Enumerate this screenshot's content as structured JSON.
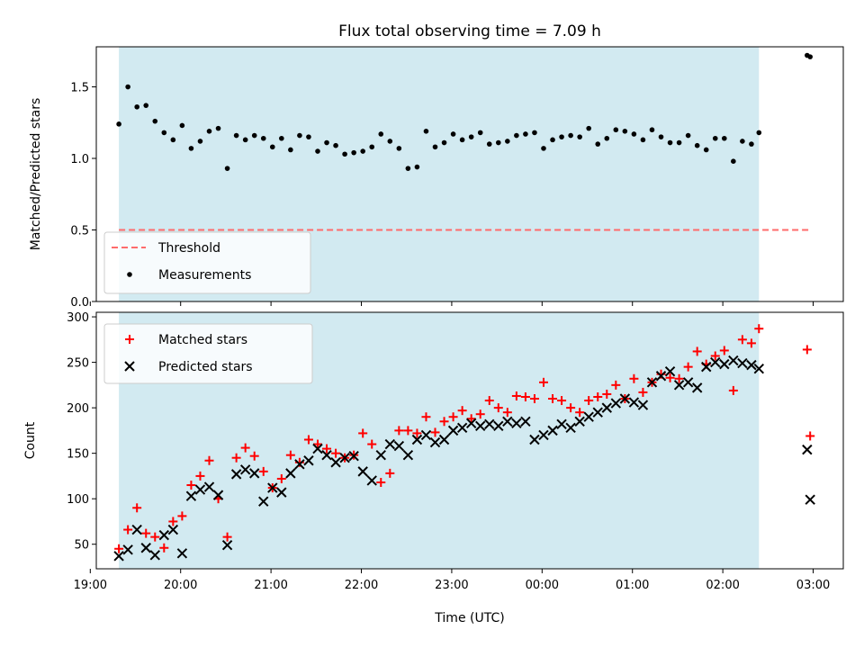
{
  "figure": {
    "title": "Flux total observing time = 7.09 h",
    "xlabel": "Time (UTC)"
  },
  "chart_data": [
    {
      "type": "scatter",
      "name": "ratio-panel",
      "ylabel": "Matched/Predicted stars",
      "xlim": [
        "19:04",
        "03:20"
      ],
      "ylim": [
        0,
        1.78
      ],
      "yticks": [
        "0.0",
        "0.5",
        "1.0",
        "1.5"
      ],
      "yticks_values": [
        0,
        0.5,
        1.0,
        1.5
      ],
      "shaded_range": [
        "19:19",
        "02:24"
      ],
      "shade_color": "#add8e6",
      "threshold": {
        "label": "Threshold",
        "value": 0.5,
        "x_range": [
          "19:19",
          "02:59"
        ],
        "color": "#ff6b6b"
      },
      "series": [
        {
          "name": "Measurements",
          "color": "#000000",
          "marker": "dot",
          "x": [
            "19:19",
            "19:25",
            "19:31",
            "19:37",
            "19:43",
            "19:49",
            "19:55",
            "20:01",
            "20:07",
            "20:13",
            "20:19",
            "20:25",
            "20:31",
            "20:37",
            "20:43",
            "20:49",
            "20:55",
            "21:01",
            "21:07",
            "21:13",
            "21:19",
            "21:25",
            "21:31",
            "21:37",
            "21:43",
            "21:49",
            "21:55",
            "22:01",
            "22:07",
            "22:13",
            "22:19",
            "22:25",
            "22:31",
            "22:37",
            "22:43",
            "22:49",
            "22:55",
            "23:01",
            "23:07",
            "23:13",
            "23:19",
            "23:25",
            "23:31",
            "23:37",
            "23:43",
            "23:49",
            "23:55",
            "00:01",
            "00:07",
            "00:13",
            "00:19",
            "00:25",
            "00:31",
            "00:37",
            "00:43",
            "00:49",
            "00:55",
            "01:01",
            "01:07",
            "01:13",
            "01:19",
            "01:25",
            "01:31",
            "01:37",
            "01:43",
            "01:49",
            "01:55",
            "02:01",
            "02:07",
            "02:13",
            "02:19",
            "02:24",
            "02:56",
            "02:58"
          ],
          "y": [
            1.24,
            1.5,
            1.36,
            1.37,
            1.26,
            1.18,
            1.13,
            1.23,
            1.07,
            1.12,
            1.19,
            1.21,
            0.93,
            1.16,
            1.13,
            1.16,
            1.14,
            1.08,
            1.14,
            1.06,
            1.16,
            1.15,
            1.05,
            1.11,
            1.09,
            1.03,
            1.04,
            1.05,
            1.08,
            1.17,
            1.12,
            1.07,
            0.93,
            0.94,
            1.19,
            1.08,
            1.11,
            1.17,
            1.13,
            1.15,
            1.18,
            1.1,
            1.11,
            1.12,
            1.16,
            1.17,
            1.18,
            1.07,
            1.13,
            1.15,
            1.16,
            1.15,
            1.21,
            1.1,
            1.14,
            1.2,
            1.19,
            1.17,
            1.13,
            1.2,
            1.15,
            1.11,
            1.11,
            1.16,
            1.09,
            1.06,
            1.14,
            1.14,
            0.98,
            1.12,
            1.1,
            1.18,
            1.72,
            1.71
          ]
        }
      ],
      "legend": {
        "placement": "lower-left",
        "entries": [
          "Threshold",
          "Measurements"
        ]
      }
    },
    {
      "type": "scatter",
      "name": "count-panel",
      "ylabel": "Count",
      "xlim": [
        "19:04",
        "03:20"
      ],
      "ylim": [
        23,
        305
      ],
      "yticks": [
        "50",
        "100",
        "150",
        "200",
        "250",
        "300"
      ],
      "yticks_values": [
        50,
        100,
        150,
        200,
        250,
        300
      ],
      "xticks": [
        "19:00",
        "20:00",
        "21:00",
        "22:00",
        "23:00",
        "00:00",
        "01:00",
        "02:00",
        "03:00"
      ],
      "shaded_range": [
        "19:19",
        "02:24"
      ],
      "shade_color": "#add8e6",
      "series": [
        {
          "name": "Matched stars",
          "color": "#ff0000",
          "marker": "plus",
          "x": [
            "19:19",
            "19:25",
            "19:31",
            "19:37",
            "19:43",
            "19:49",
            "19:55",
            "20:01",
            "20:07",
            "20:13",
            "20:19",
            "20:25",
            "20:31",
            "20:37",
            "20:43",
            "20:49",
            "20:55",
            "21:01",
            "21:07",
            "21:13",
            "21:19",
            "21:25",
            "21:31",
            "21:37",
            "21:43",
            "21:49",
            "21:55",
            "22:01",
            "22:07",
            "22:13",
            "22:19",
            "22:25",
            "22:31",
            "22:37",
            "22:43",
            "22:49",
            "22:55",
            "23:01",
            "23:07",
            "23:13",
            "23:19",
            "23:25",
            "23:31",
            "23:37",
            "23:43",
            "23:49",
            "23:55",
            "00:01",
            "00:07",
            "00:13",
            "00:19",
            "00:25",
            "00:31",
            "00:37",
            "00:43",
            "00:49",
            "00:55",
            "01:01",
            "01:07",
            "01:13",
            "01:19",
            "01:25",
            "01:31",
            "01:37",
            "01:43",
            "01:49",
            "01:55",
            "02:01",
            "02:07",
            "02:13",
            "02:19",
            "02:24",
            "02:56",
            "02:58"
          ],
          "y": [
            45,
            66,
            90,
            62,
            58,
            46,
            75,
            81,
            115,
            125,
            142,
            100,
            58,
            145,
            156,
            147,
            130,
            112,
            122,
            148,
            140,
            165,
            160,
            155,
            150,
            145,
            148,
            172,
            160,
            118,
            128,
            175,
            175,
            172,
            190,
            173,
            185,
            190,
            197,
            188,
            193,
            208,
            200,
            195,
            213,
            212,
            210,
            228,
            210,
            208,
            200,
            195,
            208,
            212,
            215,
            225,
            210,
            232,
            217,
            228,
            237,
            233,
            232,
            245,
            262,
            248,
            257,
            263,
            219,
            275,
            271,
            287,
            264,
            169
          ]
        },
        {
          "name": "Predicted stars",
          "color": "#000000",
          "marker": "x",
          "x": [
            "19:19",
            "19:25",
            "19:31",
            "19:37",
            "19:43",
            "19:49",
            "19:55",
            "20:01",
            "20:07",
            "20:13",
            "20:19",
            "20:25",
            "20:31",
            "20:37",
            "20:43",
            "20:49",
            "20:55",
            "21:01",
            "21:07",
            "21:13",
            "21:19",
            "21:25",
            "21:31",
            "21:37",
            "21:43",
            "21:49",
            "21:55",
            "22:01",
            "22:07",
            "22:13",
            "22:19",
            "22:25",
            "22:31",
            "22:37",
            "22:43",
            "22:49",
            "22:55",
            "23:01",
            "23:07",
            "23:13",
            "23:19",
            "23:25",
            "23:31",
            "23:37",
            "23:43",
            "23:49",
            "23:55",
            "00:01",
            "00:07",
            "00:13",
            "00:19",
            "00:25",
            "00:31",
            "00:37",
            "00:43",
            "00:49",
            "00:55",
            "01:01",
            "01:07",
            "01:13",
            "01:19",
            "01:25",
            "01:31",
            "01:37",
            "01:43",
            "01:49",
            "01:55",
            "02:01",
            "02:07",
            "02:13",
            "02:19",
            "02:24",
            "02:56",
            "02:58"
          ],
          "y": [
            37,
            44,
            66,
            46,
            38,
            60,
            66,
            40,
            103,
            110,
            113,
            104,
            49,
            127,
            132,
            128,
            97,
            112,
            107,
            128,
            138,
            142,
            155,
            148,
            140,
            145,
            147,
            130,
            120,
            148,
            160,
            158,
            148,
            165,
            170,
            162,
            165,
            175,
            178,
            183,
            180,
            182,
            180,
            185,
            183,
            185,
            165,
            170,
            175,
            182,
            178,
            185,
            190,
            195,
            200,
            205,
            210,
            206,
            203,
            228,
            235,
            240,
            225,
            228,
            222,
            245,
            250,
            248,
            252,
            249,
            247,
            243,
            154,
            99
          ]
        }
      ],
      "legend": {
        "placement": "upper-left",
        "entries": [
          "Matched stars",
          "Predicted stars"
        ]
      }
    }
  ]
}
